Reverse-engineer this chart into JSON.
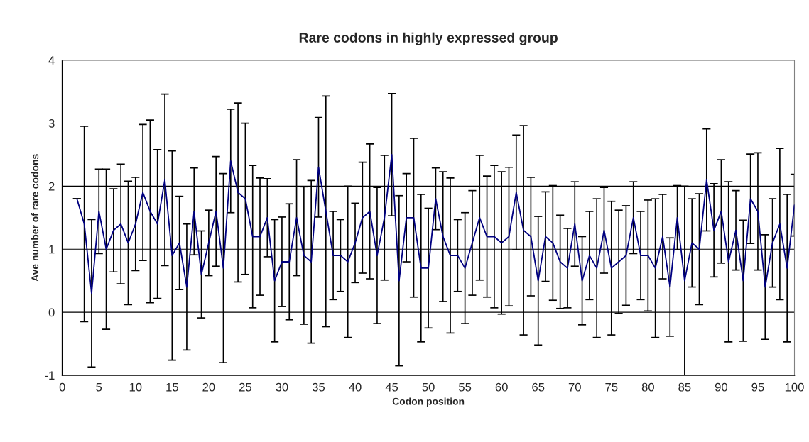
{
  "chart_data": {
    "type": "line",
    "title": "Rare codons in highly expressed group",
    "xlabel": "Codon position",
    "ylabel": "Ave number of rare codons",
    "x": [
      2,
      3,
      4,
      5,
      6,
      7,
      8,
      9,
      10,
      11,
      12,
      13,
      14,
      15,
      16,
      17,
      18,
      19,
      20,
      21,
      22,
      23,
      24,
      25,
      26,
      27,
      28,
      29,
      30,
      31,
      32,
      33,
      34,
      35,
      36,
      37,
      38,
      39,
      40,
      41,
      42,
      43,
      44,
      45,
      46,
      47,
      48,
      49,
      50,
      51,
      52,
      53,
      54,
      55,
      56,
      57,
      58,
      59,
      60,
      61,
      62,
      63,
      64,
      65,
      66,
      67,
      68,
      69,
      70,
      71,
      72,
      73,
      74,
      75,
      76,
      77,
      78,
      79,
      80,
      81,
      82,
      83,
      84,
      85,
      86,
      87,
      88,
      89,
      90,
      91,
      92,
      93,
      94,
      95,
      96,
      97,
      98,
      99,
      100
    ],
    "series": [
      {
        "color": "#000080",
        "values": [
          1.8,
          1.4,
          0.3,
          1.6,
          1.0,
          1.3,
          1.4,
          1.1,
          1.4,
          1.9,
          1.6,
          1.4,
          2.1,
          0.9,
          1.1,
          0.4,
          1.6,
          0.6,
          1.1,
          1.6,
          0.7,
          2.4,
          1.9,
          1.8,
          1.2,
          1.2,
          1.5,
          0.5,
          0.8,
          0.8,
          1.5,
          0.9,
          0.8,
          2.3,
          1.6,
          0.9,
          0.9,
          0.8,
          1.1,
          1.5,
          1.6,
          0.9,
          1.5,
          2.5,
          0.5,
          1.5,
          1.5,
          0.7,
          0.7,
          1.8,
          1.2,
          0.9,
          0.9,
          0.7,
          1.1,
          1.5,
          1.2,
          1.2,
          1.1,
          1.2,
          1.9,
          1.3,
          1.2,
          0.5,
          1.2,
          1.1,
          0.8,
          0.7,
          1.4,
          0.5,
          0.9,
          0.7,
          1.3,
          0.7,
          0.8,
          0.9,
          1.5,
          0.9,
          0.9,
          0.7,
          1.2,
          0.4,
          1.5,
          0.5,
          1.1,
          1.0,
          2.1,
          1.3,
          1.6,
          0.8,
          1.3,
          0.5,
          1.8,
          1.6,
          0.4,
          1.1,
          1.4,
          0.7,
          1.7
        ],
        "errors": [
          0,
          1.55,
          1.17,
          0.67,
          1.27,
          0.66,
          0.95,
          0.98,
          0.74,
          1.08,
          1.45,
          1.18,
          1.36,
          1.66,
          0.74,
          1.0,
          0.69,
          0.69,
          0.52,
          0.87,
          1.5,
          0.82,
          1.42,
          1.2,
          1.13,
          0.93,
          0.62,
          0.97,
          0.71,
          0.92,
          0.92,
          1.09,
          1.29,
          0.79,
          1.83,
          0.7,
          0.57,
          1.2,
          0.63,
          0.88,
          1.07,
          1.08,
          0.99,
          0.97,
          1.35,
          0.7,
          1.26,
          1.17,
          0.95,
          0.49,
          1.03,
          1.23,
          0.57,
          0.88,
          0.83,
          0.99,
          0.96,
          1.13,
          1.13,
          1.1,
          0.91,
          1.66,
          0.94,
          1.02,
          0.71,
          0.91,
          0.74,
          0.63,
          0.67,
          0.7,
          0.7,
          1.1,
          0.68,
          1.06,
          0.82,
          0.79,
          0.57,
          0.7,
          0.88,
          1.1,
          0.67,
          0.78,
          0.51,
          1.5,
          0.7,
          0.88,
          0.81,
          0.74,
          0.82,
          1.27,
          0.63,
          0.96,
          0.71,
          0.93,
          0.83,
          0.7,
          1.2,
          1.17,
          0.49
        ]
      }
    ],
    "xlim": [
      0,
      100
    ],
    "xticks": [
      0,
      5,
      10,
      15,
      20,
      25,
      30,
      35,
      40,
      45,
      50,
      55,
      60,
      65,
      70,
      75,
      80,
      85,
      90,
      95,
      100
    ],
    "ylim": [
      -1,
      4
    ],
    "yticks": [
      -1,
      0,
      1,
      2,
      3,
      4
    ],
    "grid": "y",
    "marker": "none",
    "line_style": "solid"
  }
}
